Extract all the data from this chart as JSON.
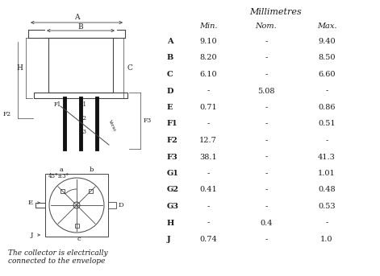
{
  "title": "Millimetres",
  "header": [
    "",
    "Min.",
    "Nom.",
    "Max."
  ],
  "rows": [
    [
      "A",
      "9.10",
      "-",
      "9.40"
    ],
    [
      "B",
      "8.20",
      "-",
      "8.50"
    ],
    [
      "C",
      "6.10",
      "-",
      "6.60"
    ],
    [
      "D",
      "-",
      "5.08",
      "-"
    ],
    [
      "E",
      "0.71",
      "-",
      "0.86"
    ],
    [
      "F1",
      "-",
      "-",
      "0.51"
    ],
    [
      "F2",
      "12.7",
      "-",
      "-"
    ],
    [
      "F3",
      "38.1",
      "-",
      "41.3"
    ],
    [
      "G1",
      "-",
      "-",
      "1.01"
    ],
    [
      "G2",
      "0.41",
      "-",
      "0.48"
    ],
    [
      "G3",
      "-",
      "-",
      "0.53"
    ],
    [
      "H",
      "-",
      "0.4",
      "-"
    ],
    [
      "J",
      "0.74",
      "-",
      "1.0"
    ]
  ],
  "note": "The collector is electrically\nconnected to the envelope",
  "bg_color": "#ffffff",
  "text_color": "#1a1a1a",
  "line_color": "#444444"
}
